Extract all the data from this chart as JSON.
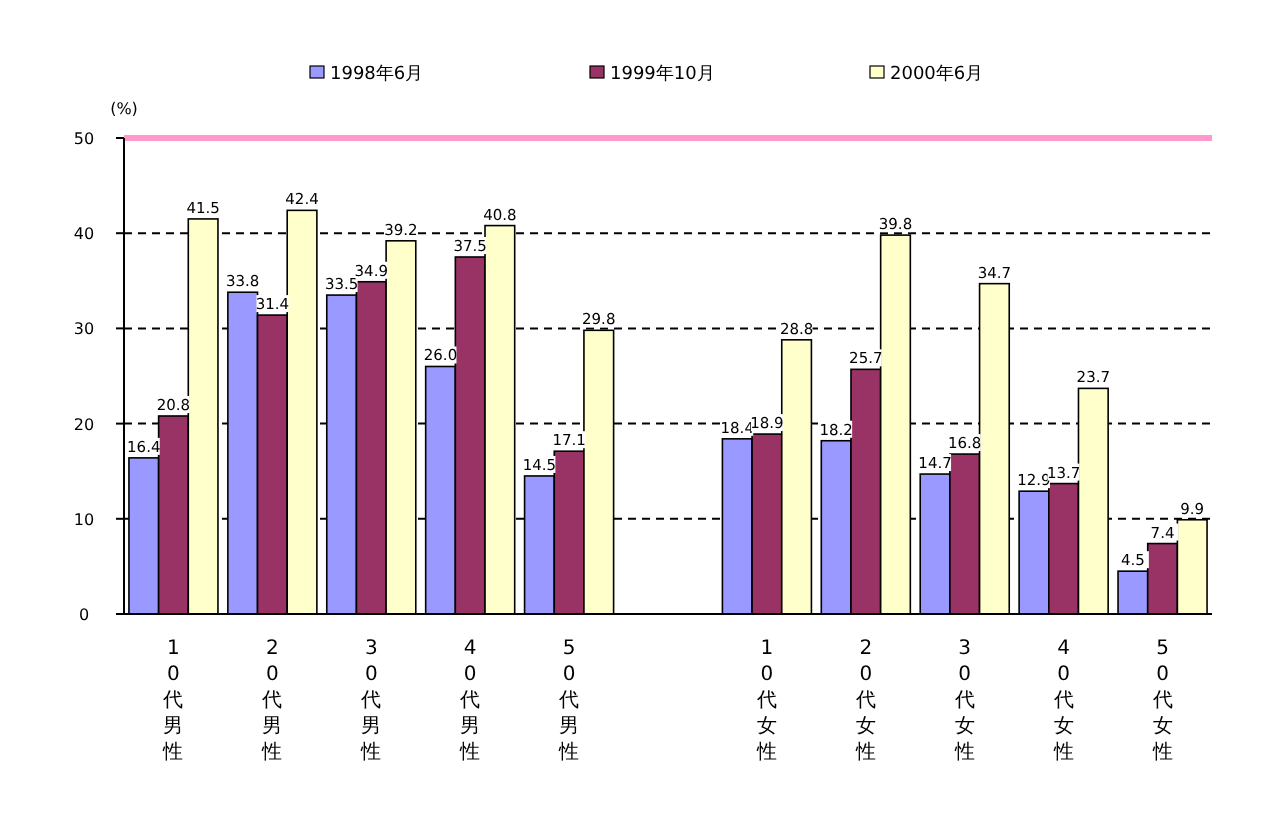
{
  "chart_data": {
    "type": "bar",
    "ylabel": "(%)",
    "categories": [
      "10代男性",
      "20代男性",
      "30代男性",
      "40代男性",
      "50代男性",
      null,
      "10代女性",
      "20代女性",
      "30代女性",
      "40代女性",
      "50代女性"
    ],
    "series": [
      {
        "name": "1998年6月",
        "color": "#9999ff",
        "values": [
          16.4,
          33.8,
          33.5,
          26.0,
          14.5,
          null,
          18.4,
          18.2,
          14.7,
          12.9,
          4.5
        ],
        "value_labels": [
          "16.4",
          "33.8",
          "33.5",
          "26.0",
          "14.5",
          null,
          "18.4",
          "18.2",
          "14.7",
          "12.9",
          "4.5"
        ]
      },
      {
        "name": "1999年10月",
        "color": "#993366",
        "values": [
          20.8,
          31.4,
          34.9,
          37.5,
          17.1,
          null,
          18.9,
          25.7,
          16.8,
          13.7,
          7.4
        ],
        "value_labels": [
          "20.8",
          "31.4",
          "34.9",
          "37.5",
          "17.1",
          null,
          "18.9",
          "25.7",
          "16.8",
          "13.7",
          "7.4"
        ]
      },
      {
        "name": "2000年6月",
        "color": "#ffffcc",
        "values": [
          41.5,
          42.4,
          39.2,
          40.8,
          29.8,
          null,
          28.8,
          39.8,
          34.7,
          23.7,
          9.9
        ],
        "value_labels": [
          "41.5",
          "42.4",
          "39.2",
          "40.8",
          "29.8",
          null,
          "28.8",
          "39.8",
          "34.7",
          "23.7",
          "9.9"
        ]
      }
    ],
    "ylim": [
      0,
      50
    ],
    "yticks": [
      0,
      10,
      20,
      30,
      40,
      50
    ],
    "grid": "y",
    "legend": "top",
    "ref_lines": [
      {
        "axis": "y",
        "value": 50,
        "color": "#ff99cc"
      }
    ]
  }
}
